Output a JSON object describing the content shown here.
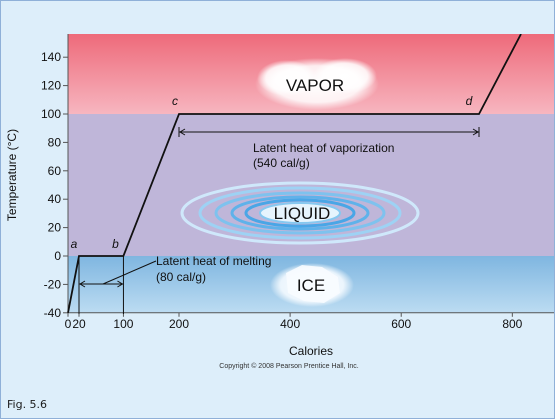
{
  "caption": "Fig. 5.6",
  "copyright": "Copyright © 2008 Pearson Prentice Hall, Inc.",
  "colors": {
    "vapor_top": "#ee6a7a",
    "vapor_bottom": "#f7b6c0",
    "liquid": "#bfb6d9",
    "ice_top": "#7fb6e0",
    "ice_bottom": "#bcdcf2",
    "line": "#111111",
    "frame_background": "#ddeefa"
  },
  "chart_data": {
    "type": "line",
    "xlabel": "Calories",
    "ylabel": "Temperature (°C)",
    "xlim": [
      0,
      830
    ],
    "ylim": [
      -40,
      150
    ],
    "x_ticks": [
      0,
      20,
      100,
      200,
      400,
      600,
      800
    ],
    "x_tick_labels": [
      "0",
      "20",
      "100",
      "200",
      "400",
      "600",
      "800"
    ],
    "y_ticks": [
      -40,
      -20,
      0,
      20,
      40,
      60,
      80,
      100,
      120,
      140
    ],
    "y_tick_labels": [
      "-40",
      "-20",
      "0",
      "20",
      "40",
      "60",
      "80",
      "100",
      "120",
      "140"
    ],
    "series": [
      {
        "x": [
          0,
          20,
          100,
          200,
          740,
          830
        ],
        "y": [
          -40,
          0,
          0,
          100,
          100,
          150
        ]
      }
    ],
    "regions": [
      {
        "label": "VAPOR",
        "y_range": [
          100,
          150
        ]
      },
      {
        "label": "LIQUID",
        "y_range": [
          0,
          100
        ]
      },
      {
        "label": "ICE",
        "y_range": [
          -40,
          0
        ]
      }
    ],
    "point_labels": [
      {
        "label": "a",
        "x": 20,
        "y": 0
      },
      {
        "label": "b",
        "x": 100,
        "y": 0
      },
      {
        "label": "c",
        "x": 200,
        "y": 100
      },
      {
        "label": "d",
        "x": 740,
        "y": 100
      }
    ],
    "annotations": [
      {
        "line1": "Latent heat of vaporization",
        "line2": "(540 cal/g)",
        "x_range": [
          200,
          740
        ],
        "y": 86
      },
      {
        "line1": "Latent heat of melting",
        "line2": "(80 cal/g)",
        "x_range": [
          20,
          100
        ],
        "y": -20
      }
    ]
  }
}
